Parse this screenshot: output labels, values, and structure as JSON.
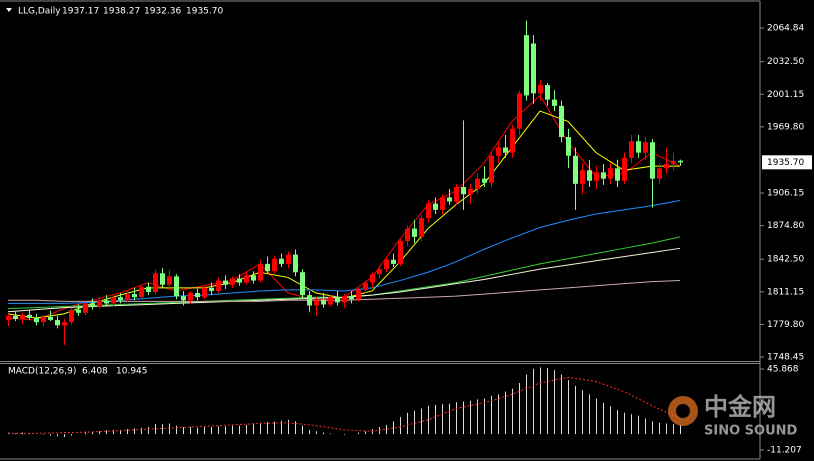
{
  "chart_data": [
    {
      "type": "candlestick",
      "title": "LLG,Daily",
      "ohlc_header": {
        "values": [
          1937.17,
          1938.27,
          1932.36,
          1935.7
        ],
        "value_labels": [
          "1937.17",
          "1938.27",
          "1932.36",
          "1935.70"
        ]
      },
      "up_color": "#ff0000",
      "down_color": "#7fff7f",
      "ylim": [
        1745.6,
        2088.9
      ],
      "yticks": [
        2064.84,
        {
          "value": 2032.5,
          "label": "2032.50"
        },
        2001.15,
        {
          "value": 1969.8,
          "label": "1969.80"
        },
        1906.15,
        {
          "value": 1874.8,
          "label": "1874.80"
        },
        {
          "value": 1842.5,
          "label": "1842.50"
        },
        1811.15,
        {
          "value": 1779.8,
          "label": "1779.80"
        },
        1748.45
      ],
      "last": {
        "value": 1935.7,
        "label": "1935.70"
      },
      "ohlc": [
        [
          1784,
          1790,
          1778,
          1788
        ],
        [
          1788,
          1792,
          1783,
          1785
        ],
        [
          1785,
          1791,
          1780,
          1789
        ],
        [
          1789,
          1794,
          1784,
          1786
        ],
        [
          1786,
          1790,
          1779,
          1782
        ],
        [
          1782,
          1789,
          1778,
          1787
        ],
        [
          1787,
          1793,
          1783,
          1784
        ],
        [
          1784,
          1788,
          1776,
          1779
        ],
        [
          1779,
          1785,
          1760,
          1782
        ],
        [
          1782,
          1796,
          1780,
          1794
        ],
        [
          1794,
          1799,
          1788,
          1791
        ],
        [
          1791,
          1802,
          1789,
          1800
        ],
        [
          1800,
          1805,
          1794,
          1797
        ],
        [
          1797,
          1806,
          1795,
          1803
        ],
        [
          1803,
          1808,
          1798,
          1800
        ],
        [
          1800,
          1808,
          1797,
          1806
        ],
        [
          1806,
          1810,
          1800,
          1803
        ],
        [
          1803,
          1812,
          1801,
          1809
        ],
        [
          1809,
          1815,
          1803,
          1806
        ],
        [
          1806,
          1818,
          1804,
          1816
        ],
        [
          1816,
          1820,
          1808,
          1811
        ],
        [
          1811,
          1832,
          1809,
          1829
        ],
        [
          1829,
          1834,
          1815,
          1818
        ],
        [
          1818,
          1832,
          1814,
          1826
        ],
        [
          1826,
          1828,
          1804,
          1807
        ],
        [
          1807,
          1812,
          1798,
          1803
        ],
        [
          1803,
          1812,
          1800,
          1810
        ],
        [
          1810,
          1814,
          1803,
          1806
        ],
        [
          1806,
          1818,
          1804,
          1815
        ],
        [
          1815,
          1820,
          1808,
          1812
        ],
        [
          1812,
          1825,
          1810,
          1822
        ],
        [
          1822,
          1827,
          1814,
          1818
        ],
        [
          1818,
          1826,
          1815,
          1824
        ],
        [
          1824,
          1828,
          1817,
          1820
        ],
        [
          1820,
          1830,
          1818,
          1827
        ],
        [
          1827,
          1831,
          1819,
          1822
        ],
        [
          1822,
          1842,
          1820,
          1838
        ],
        [
          1838,
          1845,
          1828,
          1831
        ],
        [
          1831,
          1846,
          1829,
          1843
        ],
        [
          1843,
          1848,
          1835,
          1838
        ],
        [
          1838,
          1850,
          1834,
          1847
        ],
        [
          1847,
          1852,
          1826,
          1830
        ],
        [
          1830,
          1833,
          1805,
          1808
        ],
        [
          1808,
          1812,
          1792,
          1798
        ],
        [
          1798,
          1806,
          1788,
          1803
        ],
        [
          1803,
          1810,
          1796,
          1799
        ],
        [
          1799,
          1808,
          1797,
          1806
        ],
        [
          1806,
          1812,
          1798,
          1801
        ],
        [
          1801,
          1809,
          1796,
          1807
        ],
        [
          1807,
          1812,
          1800,
          1804
        ],
        [
          1804,
          1815,
          1802,
          1813
        ],
        [
          1813,
          1822,
          1810,
          1820
        ],
        [
          1820,
          1830,
          1815,
          1828
        ],
        [
          1828,
          1836,
          1824,
          1833
        ],
        [
          1833,
          1845,
          1830,
          1842
        ],
        [
          1842,
          1848,
          1835,
          1838
        ],
        [
          1838,
          1862,
          1836,
          1860
        ],
        [
          1860,
          1875,
          1855,
          1872
        ],
        [
          1872,
          1880,
          1858,
          1864
        ],
        [
          1864,
          1885,
          1860,
          1882
        ],
        [
          1882,
          1900,
          1878,
          1896
        ],
        [
          1896,
          1902,
          1886,
          1890
        ],
        [
          1890,
          1905,
          1885,
          1902
        ],
        [
          1902,
          1910,
          1895,
          1898
        ],
        [
          1898,
          1915,
          1895,
          1912
        ],
        [
          1912,
          1976,
          1890,
          1905
        ],
        [
          1905,
          1915,
          1896,
          1910
        ],
        [
          1910,
          1925,
          1905,
          1920
        ],
        [
          1920,
          1932,
          1912,
          1916
        ],
        [
          1916,
          1945,
          1912,
          1942
        ],
        [
          1942,
          1955,
          1935,
          1950
        ],
        [
          1950,
          1962,
          1940,
          1945
        ],
        [
          1945,
          1972,
          1940,
          1968
        ],
        [
          1968,
          2005,
          1962,
          2002
        ],
        [
          2058,
          2072,
          1995,
          2000
        ],
        [
          2050,
          2058,
          1992,
          2002
        ],
        [
          2002,
          2015,
          1995,
          2010
        ],
        [
          2010,
          2012,
          1990,
          1996
        ],
        [
          1996,
          2005,
          1985,
          1990
        ],
        [
          1990,
          1995,
          1955,
          1960
        ],
        [
          1960,
          1968,
          1930,
          1942
        ],
        [
          1942,
          1950,
          1890,
          1915
        ],
        [
          1915,
          1935,
          1905,
          1928
        ],
        [
          1928,
          1938,
          1912,
          1918
        ],
        [
          1918,
          1932,
          1910,
          1926
        ],
        [
          1926,
          1934,
          1914,
          1920
        ],
        [
          1920,
          1935,
          1915,
          1930
        ],
        [
          1930,
          1938,
          1912,
          1918
        ],
        [
          1918,
          1945,
          1915,
          1940
        ],
        [
          1940,
          1962,
          1935,
          1956
        ],
        [
          1956,
          1962,
          1940,
          1945
        ],
        [
          1945,
          1960,
          1938,
          1955
        ],
        [
          1955,
          1958,
          1892,
          1920
        ],
        [
          1920,
          1935,
          1915,
          1930
        ],
        [
          1930,
          1950,
          1925,
          1934
        ],
        [
          1934,
          1945,
          1928,
          1937
        ],
        [
          1937.17,
          1938.27,
          1932.36,
          1935.7
        ]
      ],
      "ma": {
        "x": [
          0,
          4,
          8,
          12,
          16,
          20,
          24,
          28,
          32,
          36,
          40,
          44,
          48,
          52,
          56,
          60,
          64,
          68,
          72,
          76,
          80,
          84,
          88,
          92,
          96
        ],
        "series": [
          {
            "color": "#ff0000",
            "values": [
              1786,
              1784,
              1795,
              1803,
              1810,
              1820,
              1812,
              1817,
              1822,
              1838,
              1810,
              1803,
              1806,
              1825,
              1862,
              1895,
              1908,
              1935,
              1975,
              2000,
              1955,
              1922,
              1925,
              1945,
              1932
            ]
          },
          {
            "color": "#ffff00",
            "values": [
              1790,
              1786,
              1790,
              1800,
              1808,
              1815,
              1815,
              1815,
              1820,
              1830,
              1825,
              1810,
              1805,
              1812,
              1840,
              1872,
              1895,
              1915,
              1950,
              1985,
              1975,
              1945,
              1928,
              1932,
              1932
            ]
          },
          {
            "color": "#1e90ff",
            "values": [
              1800,
              1800,
              1800,
              1801,
              1803,
              1805,
              1807,
              1808,
              1810,
              1812,
              1813,
              1813,
              1812,
              1815,
              1822,
              1830,
              1840,
              1852,
              1863,
              1873,
              1880,
              1886,
              1890,
              1894,
              1899
            ]
          },
          {
            "color": "#32cd32",
            "values": [
              1795,
              1796,
              1797,
              1798,
              1799,
              1800,
              1801,
              1802,
              1803,
              1804,
              1805,
              1806,
              1806,
              1808,
              1812,
              1816,
              1820,
              1826,
              1832,
              1838,
              1843,
              1848,
              1853,
              1858,
              1864
            ]
          },
          {
            "color": "#f5f5dc",
            "values": [
              1792,
              1794,
              1796,
              1797,
              1798,
              1799,
              1800,
              1801,
              1802,
              1803,
              1804,
              1805,
              1806,
              1808,
              1811,
              1815,
              1819,
              1823,
              1828,
              1833,
              1837,
              1841,
              1845,
              1849,
              1853
            ]
          },
          {
            "color": "#c8a8a8",
            "values": [
              1803,
              1803,
              1802,
              1802,
              1802,
              1802,
              1802,
              1802,
              1802,
              1802,
              1803,
              1803,
              1803,
              1804,
              1805,
              1806,
              1807,
              1809,
              1811,
              1813,
              1815,
              1817,
              1819,
              1821,
              1822
            ]
          }
        ]
      }
    },
    {
      "type": "macd",
      "title": "MACD(12,26,9)",
      "label_values": [
        6.408,
        10.945
      ],
      "color": "#dddddd",
      "ylim": [
        -16.84,
        49.39
      ],
      "yticks": [
        45.868,
        -11.207
      ],
      "values": [
        1,
        0.5,
        1,
        0.5,
        0,
        -0.5,
        -1,
        -1.5,
        -2,
        -1,
        0,
        1,
        1.5,
        2,
        2.5,
        3,
        3,
        3.5,
        4,
        4.5,
        5,
        7,
        7,
        7.5,
        6,
        5,
        5,
        4.5,
        5,
        5,
        5.5,
        5.5,
        6,
        6,
        6.5,
        7.5,
        8,
        8.5,
        9,
        9.5,
        10,
        9,
        6,
        3,
        2,
        1,
        0.5,
        0,
        -0.5,
        0,
        1,
        2,
        3.5,
        5,
        6.5,
        9,
        12,
        15,
        16.5,
        18,
        20,
        20.5,
        21,
        21.5,
        22.5,
        23,
        23.5,
        24.5,
        25,
        27,
        28,
        30,
        32,
        36,
        42,
        46,
        47,
        46.5,
        45,
        42,
        38,
        34,
        31,
        28,
        25,
        22,
        19.5,
        17,
        15,
        14,
        13,
        11,
        9,
        8,
        7.5,
        7,
        6.408
      ],
      "signal": {
        "color": "#ff3030",
        "x": [
          0,
          4,
          8,
          12,
          16,
          20,
          24,
          28,
          32,
          36,
          40,
          44,
          48,
          52,
          56,
          60,
          64,
          68,
          72,
          76,
          80,
          84,
          88,
          92,
          96
        ],
        "values": [
          0.5,
          0.5,
          1,
          1.5,
          2.5,
          3.5,
          4.5,
          5.5,
          6.5,
          7.5,
          8,
          6,
          3,
          2,
          5,
          10,
          18,
          22,
          28,
          36,
          40,
          37,
          30,
          20,
          10.945
        ]
      }
    }
  ],
  "watermark": {
    "title": "中金网",
    "subtitle": "SINO SOUND"
  }
}
